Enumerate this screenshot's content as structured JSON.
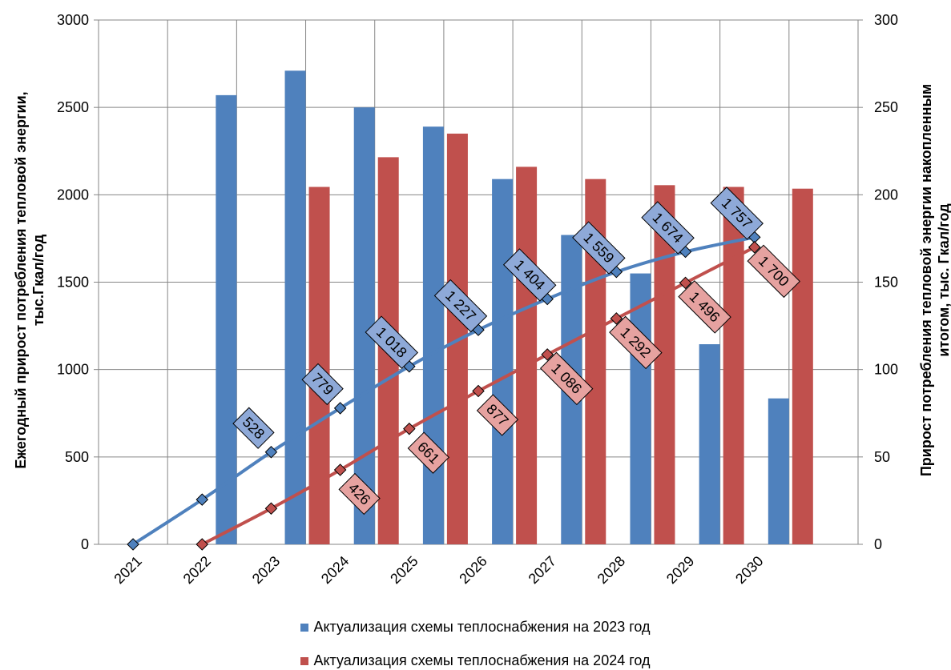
{
  "chart_data": {
    "type": "bar",
    "categories": [
      "2021",
      "2022",
      "2023",
      "2024",
      "2025",
      "2026",
      "2027",
      "2028",
      "2029",
      "2030"
    ],
    "series": [
      {
        "name": "Актуализация схемы теплоснабжения на 2023 год",
        "kind": "bar",
        "axis": "left",
        "color": "#4F81BD",
        "values": [
          0,
          2570,
          2710,
          2500,
          2390,
          2090,
          1770,
          1550,
          1145,
          835
        ]
      },
      {
        "name": "Актуализация схемы теплоснабжения на 2024 год",
        "kind": "bar",
        "axis": "left",
        "color": "#C0504D",
        "values": [
          0,
          0,
          2045,
          2215,
          2350,
          2160,
          2090,
          2055,
          2045,
          2035
        ]
      },
      {
        "kind": "line",
        "axis": "right",
        "color": "#4F81BD",
        "values": [
          0,
          25.6,
          52.8,
          77.9,
          101.8,
          122.7,
          140.4,
          155.9,
          167.4,
          175.7
        ],
        "labels": [
          "",
          "",
          "528",
          "779",
          "1 018",
          "1 227",
          "1 404",
          "1 559",
          "1 674",
          "1 757"
        ]
      },
      {
        "kind": "line",
        "axis": "right",
        "color": "#C0504D",
        "values": [
          null,
          0,
          20.5,
          42.6,
          66.1,
          87.7,
          108.6,
          129.2,
          149.6,
          170.0
        ],
        "labels": [
          "",
          "",
          "",
          "426",
          "661",
          "877",
          "1 086",
          "1 292",
          "1 496",
          "1 700"
        ]
      }
    ],
    "ylabel": "Ежегодный прирост потребления тепловой энергии, тыс.Гкал/год",
    "ylabel_right": "Прирост потребления тепловой энергии накопленным итогом, тыс. Гкал/год",
    "ylim": [
      0,
      3000
    ],
    "ylim_right": [
      0,
      300
    ],
    "yticks": [
      "0",
      "500",
      "1000",
      "1500",
      "2000",
      "2500",
      "3000"
    ],
    "yticks_right": [
      "0",
      "50",
      "100",
      "150",
      "200",
      "250",
      "300"
    ],
    "grid": true,
    "legend_position": "bottom"
  },
  "axis_titles": {
    "left_line1": "Ежегодный прирост потребления тепловой энергии,",
    "left_line2": "тыс.Гкал/год",
    "right_line1": "Прирост потребления тепловой энергии накопленным",
    "right_line2": "итогом, тыс. Гкал/год"
  },
  "legend": {
    "item1": "Актуализация схемы теплоснабжения на 2023 год",
    "item2": "Актуализация схемы теплоснабжения на 2024 год",
    "color1": "#4F81BD",
    "color2": "#C0504D"
  }
}
